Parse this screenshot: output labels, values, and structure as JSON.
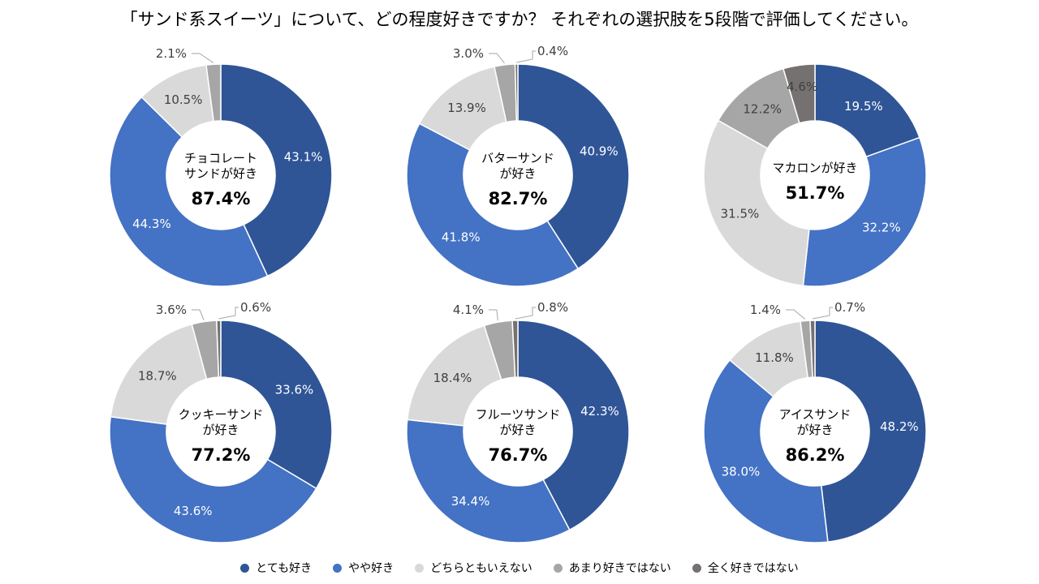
{
  "page": {
    "title": "「サンド系スイーツ」について、どの程度好きですか？ それぞれの選択肢を5段階で評価してください。"
  },
  "chart_data": {
    "type": "pie",
    "variant": "donut",
    "legend_position": "bottom",
    "series_names": [
      "とても好き",
      "やや好き",
      "どちらともいえない",
      "あまり好きではない",
      "全く好きではない"
    ],
    "colors": [
      "#2f5597",
      "#4472c4",
      "#d9d9d9",
      "#a6a6a6",
      "#767171"
    ],
    "charts": [
      {
        "label_lines": [
          "チョコレート",
          "サンドが好き"
        ],
        "total": "87.4%",
        "values": [
          43.1,
          44.3,
          10.5,
          2.1,
          0.0
        ],
        "labels": [
          "43.1%",
          "44.3%",
          "10.5%",
          "2.1%",
          ""
        ]
      },
      {
        "label_lines": [
          "バターサンド",
          "が好き"
        ],
        "total": "82.7%",
        "values": [
          40.9,
          41.8,
          13.9,
          3.0,
          0.4
        ],
        "labels": [
          "40.9%",
          "41.8%",
          "13.9%",
          "3.0%",
          "0.4%"
        ]
      },
      {
        "label_lines": [
          "マカロンが好き"
        ],
        "total": "51.7%",
        "values": [
          19.5,
          32.2,
          31.5,
          12.2,
          4.6
        ],
        "labels": [
          "19.5%",
          "32.2%",
          "31.5%",
          "12.2%",
          "4.6%"
        ]
      },
      {
        "label_lines": [
          "クッキーサンド",
          "が好き"
        ],
        "total": "77.2%",
        "values": [
          33.6,
          43.6,
          18.7,
          3.6,
          0.6
        ],
        "labels": [
          "33.6%",
          "43.6%",
          "18.7%",
          "3.6%",
          "0.6%"
        ]
      },
      {
        "label_lines": [
          "フルーツサンド",
          "が好き"
        ],
        "total": "76.7%",
        "values": [
          42.3,
          34.4,
          18.4,
          4.1,
          0.8
        ],
        "labels": [
          "42.3%",
          "34.4%",
          "18.4%",
          "4.1%",
          "0.8%"
        ]
      },
      {
        "label_lines": [
          "アイスサンド",
          "が好き"
        ],
        "total": "86.2%",
        "values": [
          48.2,
          38.0,
          11.8,
          1.4,
          0.7
        ],
        "labels": [
          "48.2%",
          "38.0%",
          "11.8%",
          "1.4%",
          "0.7%"
        ]
      }
    ]
  }
}
